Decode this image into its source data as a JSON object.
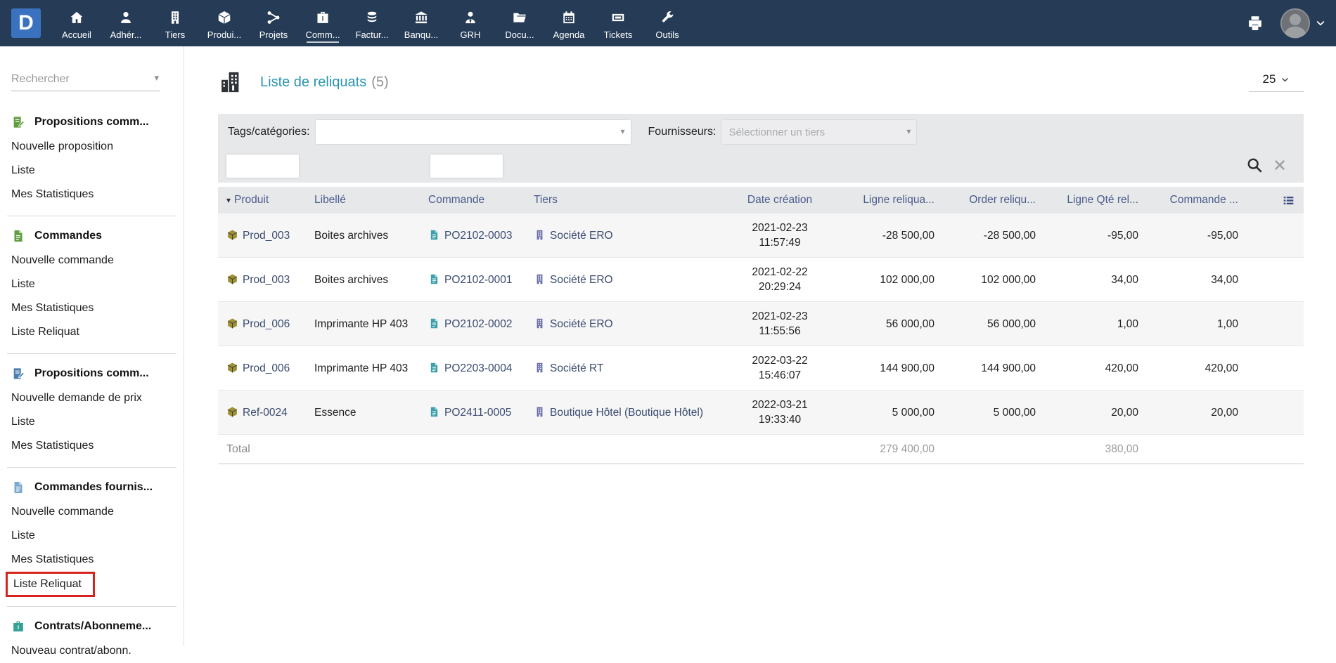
{
  "navbar": {
    "logo_text": "D",
    "items": [
      {
        "label": "Accueil",
        "icon": "home",
        "active": false
      },
      {
        "label": "Adhér...",
        "icon": "member",
        "active": false
      },
      {
        "label": "Tiers",
        "icon": "thirdparty",
        "active": false
      },
      {
        "label": "Produi...",
        "icon": "product",
        "active": false
      },
      {
        "label": "Projets",
        "icon": "project",
        "active": false
      },
      {
        "label": "Comm...",
        "icon": "commerce",
        "active": true
      },
      {
        "label": "Factur...",
        "icon": "billing",
        "active": false
      },
      {
        "label": "Banqu...",
        "icon": "bank",
        "active": false
      },
      {
        "label": "GRH",
        "icon": "hrm",
        "active": false
      },
      {
        "label": "Docu...",
        "icon": "documents",
        "active": false
      },
      {
        "label": "Agenda",
        "icon": "agenda",
        "active": false
      },
      {
        "label": "Tickets",
        "icon": "ticket",
        "active": false
      },
      {
        "label": "Outils",
        "icon": "tools",
        "active": false
      }
    ]
  },
  "sidebar": {
    "search": {
      "placeholder": "Rechercher"
    },
    "sections": [
      {
        "title": "Propositions comm...",
        "icon": "propal-green",
        "items": [
          {
            "label": "Nouvelle proposition"
          },
          {
            "label": "Liste"
          },
          {
            "label": "Mes Statistiques"
          }
        ]
      },
      {
        "title": "Commandes",
        "icon": "order-green",
        "items": [
          {
            "label": "Nouvelle commande"
          },
          {
            "label": "Liste"
          },
          {
            "label": "Mes Statistiques"
          },
          {
            "label": "Liste Reliquat"
          }
        ]
      },
      {
        "title": "Propositions comm...",
        "icon": "propal-blue",
        "items": [
          {
            "label": "Nouvelle demande de prix"
          },
          {
            "label": "Liste"
          },
          {
            "label": "Mes Statistiques"
          }
        ]
      },
      {
        "title": "Commandes fournis...",
        "icon": "order-lightblue",
        "items": [
          {
            "label": "Nouvelle commande"
          },
          {
            "label": "Liste"
          },
          {
            "label": "Mes Statistiques"
          },
          {
            "label": "Liste Reliquat",
            "highlighted": true
          }
        ]
      },
      {
        "title": "Contrats/Abonneme...",
        "icon": "contract-teal",
        "items": [
          {
            "label": "Nouveau contrat/abonn."
          }
        ]
      }
    ]
  },
  "main": {
    "title": "Liste de reliquats",
    "title_count": "(5)",
    "page_size": "25",
    "filters": {
      "tags_label": "Tags/catégories:",
      "suppliers_label": "Fournisseurs:",
      "suppliers_placeholder": "Sélectionner un tiers"
    },
    "table": {
      "columns": [
        {
          "label": "Produit",
          "align": "left",
          "sort": true
        },
        {
          "label": "Libellé",
          "align": "left"
        },
        {
          "label": "Commande",
          "align": "left"
        },
        {
          "label": "Tiers",
          "align": "left"
        },
        {
          "label": "Date création",
          "align": "center"
        },
        {
          "label": "Ligne reliqua...",
          "align": "right"
        },
        {
          "label": "Order reliqu...",
          "align": "right"
        },
        {
          "label": "Ligne Qté rel...",
          "align": "right"
        },
        {
          "label": "Commande ...",
          "align": "right"
        },
        {
          "label": "",
          "align": "right",
          "icon": "list-columns"
        }
      ],
      "rows": [
        {
          "product": "Prod_003",
          "label": "Boites archives",
          "order": "PO2102-0003",
          "thirdparty": "Société ERO",
          "date": "2021-02-23",
          "time": "11:57:49",
          "line_rel": "-28 500,00",
          "order_rel": "-28 500,00",
          "line_qty": "-95,00",
          "order_qty": "-95,00"
        },
        {
          "product": "Prod_003",
          "label": "Boites archives",
          "order": "PO2102-0001",
          "thirdparty": "Société ERO",
          "date": "2021-02-22",
          "time": "20:29:24",
          "line_rel": "102 000,00",
          "order_rel": "102 000,00",
          "line_qty": "34,00",
          "order_qty": "34,00"
        },
        {
          "product": "Prod_006",
          "label": "Imprimante HP 403",
          "order": "PO2102-0002",
          "thirdparty": "Société ERO",
          "date": "2021-02-23",
          "time": "11:55:56",
          "line_rel": "56 000,00",
          "order_rel": "56 000,00",
          "line_qty": "1,00",
          "order_qty": "1,00"
        },
        {
          "product": "Prod_006",
          "label": "Imprimante HP 403",
          "order": "PO2203-0004",
          "thirdparty": "Société RT",
          "date": "2022-03-22",
          "time": "15:46:07",
          "line_rel": "144 900,00",
          "order_rel": "144 900,00",
          "line_qty": "420,00",
          "order_qty": "420,00"
        },
        {
          "product": "Ref-0024",
          "label": "Essence",
          "order": "PO2411-0005",
          "thirdparty": "Boutique Hôtel (Boutique Hôtel)",
          "date": "2022-03-21",
          "time": "19:33:40",
          "line_rel": "5 000,00",
          "order_rel": "5 000,00",
          "line_qty": "20,00",
          "order_qty": "20,00"
        }
      ],
      "total": {
        "label": "Total",
        "line_rel": "279 400,00",
        "line_qty": "380,00"
      }
    }
  },
  "colors": {
    "navbar_bg": "#253B56",
    "logo_bg": "#3B72C0",
    "title_teal": "#2C96B0",
    "header_text": "#4A5B8C",
    "link_dark": "#3A4B6E",
    "product_gold": "#A0902F",
    "order_teal": "#3AA0AB",
    "tiers_purple": "#6B6FA8",
    "highlight_red": "#D7231E",
    "filter_bg": "#E7E8EA",
    "row_alt": "#F6F6F7"
  }
}
